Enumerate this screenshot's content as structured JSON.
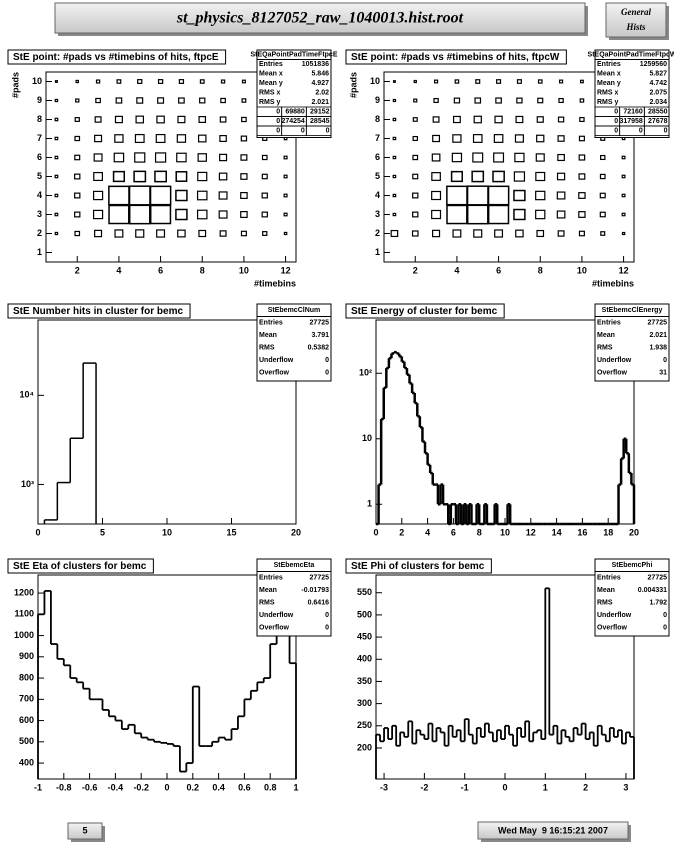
{
  "header": {
    "title": "st_physics_8127052_raw_1040013.hist.root",
    "button": [
      "General",
      "Hists"
    ]
  },
  "footer": {
    "page": "5",
    "date": "Wed May  9 16:15:21 2007"
  },
  "chart_data": [
    {
      "type": "box2d",
      "title": "StE point: #pads vs #timebins of hits, ftpcE",
      "xlabel": "#timebins",
      "ylabel": "#pads",
      "xlim": [
        0.5,
        12.5
      ],
      "ylim": [
        0.5,
        10.5
      ],
      "xticks": [
        2,
        4,
        6,
        8,
        10,
        12
      ],
      "yticks": [
        1,
        2,
        3,
        4,
        5,
        6,
        7,
        8,
        9,
        10
      ],
      "x": [
        1,
        2,
        3,
        4,
        5,
        6,
        7,
        8,
        9,
        10,
        11,
        12
      ],
      "y": [
        2,
        3,
        4,
        5,
        6,
        7,
        8,
        9,
        10
      ],
      "values": [
        [
          800,
          3000,
          7000,
          9000,
          9500,
          9000,
          8000,
          6500,
          5000,
          3500,
          2500,
          800
        ],
        [
          1000,
          4000,
          12000,
          58000,
          60000,
          58000,
          18000,
          13000,
          9000,
          6000,
          4000,
          1200
        ],
        [
          1000,
          4000,
          12000,
          60000,
          62000,
          60000,
          18000,
          13000,
          9000,
          6000,
          4000,
          1200
        ],
        [
          1000,
          4000,
          11000,
          17000,
          19000,
          19000,
          16000,
          12000,
          8000,
          5500,
          3500,
          1200
        ],
        [
          1000,
          3500,
          9000,
          13000,
          15000,
          15000,
          13000,
          10000,
          7000,
          5000,
          3000,
          1200
        ],
        [
          1000,
          3000,
          7000,
          10000,
          11000,
          11000,
          10000,
          8000,
          6000,
          4000,
          2500,
          1000
        ],
        [
          1000,
          2500,
          5000,
          7000,
          8000,
          8000,
          7000,
          6000,
          4500,
          3000,
          2000,
          1000
        ],
        [
          800,
          1500,
          3000,
          4500,
          5000,
          5000,
          4500,
          4000,
          3000,
          2000,
          1500,
          800
        ],
        [
          500,
          800,
          1500,
          2000,
          2500,
          2500,
          2500,
          2000,
          1500,
          1200,
          800,
          500
        ]
      ],
      "stats": {
        "name": "StEQaPointPadTimeFtpcE",
        "rows": [
          {
            "label": "Entries",
            "value": 1051836
          },
          {
            "label": "Mean x",
            "value": 5.846
          },
          {
            "label": "Mean y",
            "value": 4.927
          },
          {
            "label": "RMS x",
            "value": 2.02
          },
          {
            "label": "RMS y",
            "value": 2.021
          }
        ],
        "grid": [
          [
            0,
            69880,
            29152
          ],
          [
            0,
            274254,
            28545
          ],
          [
            0,
            0,
            0
          ]
        ]
      }
    },
    {
      "type": "box2d",
      "title": "StE point: #pads vs #timebins of hits, ftpcW",
      "xlabel": "#timebins",
      "ylabel": "#pads",
      "xlim": [
        0.5,
        12.5
      ],
      "ylim": [
        0.5,
        10.5
      ],
      "xticks": [
        2,
        4,
        6,
        8,
        10,
        12
      ],
      "yticks": [
        1,
        2,
        3,
        4,
        5,
        6,
        7,
        8,
        9,
        10
      ],
      "x": [
        1,
        2,
        3,
        4,
        5,
        6,
        7,
        8,
        9,
        10,
        11,
        12
      ],
      "y": [
        2,
        3,
        4,
        5,
        6,
        7,
        8,
        9,
        10
      ],
      "values": [
        [
          7000,
          5000,
          8000,
          10000,
          10500,
          10000,
          9000,
          7000,
          5500,
          4000,
          2500,
          800
        ],
        [
          1000,
          4500,
          13000,
          66000,
          68000,
          66000,
          20000,
          14000,
          9500,
          6500,
          4000,
          1200
        ],
        [
          1000,
          4500,
          13000,
          68000,
          70000,
          68000,
          20000,
          14000,
          9500,
          6500,
          4000,
          1200
        ],
        [
          1000,
          4000,
          12000,
          19000,
          21000,
          21000,
          17000,
          13000,
          8500,
          5500,
          3500,
          1200
        ],
        [
          1000,
          3500,
          9500,
          14000,
          16000,
          16000,
          14000,
          10500,
          7000,
          5000,
          3000,
          1200
        ],
        [
          1000,
          3000,
          7500,
          11000,
          12000,
          12000,
          10500,
          8500,
          6000,
          4000,
          2500,
          1000
        ],
        [
          1000,
          2500,
          5500,
          7500,
          8500,
          8500,
          7500,
          6000,
          4500,
          3000,
          2000,
          1000
        ],
        [
          800,
          1500,
          3000,
          4500,
          5000,
          5000,
          4500,
          4000,
          3000,
          2000,
          1500,
          800
        ],
        [
          500,
          800,
          1500,
          2000,
          2500,
          2500,
          2500,
          2000,
          1500,
          1200,
          800,
          500
        ]
      ],
      "stats": {
        "name": "StEQaPointPadTimeFtpcW",
        "rows": [
          {
            "label": "Entries",
            "value": 1259560
          },
          {
            "label": "Mean x",
            "value": 5.827
          },
          {
            "label": "Mean y",
            "value": 4.742
          },
          {
            "label": "RMS x",
            "value": 2.075
          },
          {
            "label": "RMS y",
            "value": 2.034
          }
        ],
        "grid": [
          [
            0,
            72160,
            28550
          ],
          [
            0,
            317958,
            27678
          ],
          [
            0,
            0,
            0
          ]
        ]
      }
    },
    {
      "type": "histogram",
      "title": "StE Number hits in cluster for bemc",
      "log_y": true,
      "xlim": [
        0,
        20
      ],
      "ylim": [
        360,
        70000
      ],
      "xticks": [
        0,
        5,
        10,
        15,
        20
      ],
      "yticks": [
        {
          "value": 1000,
          "label": "10³"
        },
        {
          "value": 10000,
          "label": "10⁴"
        }
      ],
      "bins": [
        0.5,
        1.5,
        2.5,
        3.5,
        4.5
      ],
      "values": [
        400,
        1050,
        3300,
        23000
      ],
      "line_width": 1.5,
      "stats": {
        "name": "StEbemcClNum",
        "rows": [
          {
            "label": "Entries",
            "value": 27725
          },
          {
            "label": "Mean",
            "value": 3.791
          },
          {
            "label": "RMS",
            "value": 0.5382
          },
          {
            "label": "Underflow",
            "value": 0
          },
          {
            "label": "Overflow",
            "value": 0
          }
        ]
      }
    },
    {
      "type": "histogram",
      "title": "StE Energy of cluster for bemc",
      "log_y": true,
      "xlim": [
        0,
        20
      ],
      "ylim": [
        0.5,
        650
      ],
      "xticks": [
        0,
        2,
        4,
        6,
        8,
        10,
        12,
        14,
        16,
        18,
        20
      ],
      "yticks": [
        1,
        10,
        {
          "value": 100,
          "label": "10²"
        }
      ],
      "bins": [
        0,
        0.2,
        0.4,
        0.6,
        0.8,
        1,
        1.2,
        1.4,
        1.6,
        1.8,
        2,
        2.2,
        2.4,
        2.6,
        2.8,
        3,
        3.2,
        3.4,
        3.6,
        3.8,
        4,
        4.2,
        4.4,
        4.6,
        4.8,
        5,
        5.2,
        5.4,
        5.6,
        5.8,
        6,
        6.2,
        6.4,
        6.6,
        6.8,
        7,
        7.2,
        7.4,
        7.6,
        7.8,
        8,
        8.2,
        8.4,
        8.6,
        8.8,
        9,
        9.2,
        9.4,
        9.6,
        9.8,
        10,
        10.2,
        10.4,
        10.6,
        10.8,
        11,
        11.2,
        11.4,
        11.6,
        11.8,
        12,
        12.2,
        12.4,
        12.6,
        12.8,
        13,
        13.2,
        13.4,
        13.6,
        13.8,
        14,
        14.2,
        14.4,
        14.6,
        14.8,
        15,
        15.2,
        15.4,
        15.6,
        15.8,
        16,
        16.2,
        16.4,
        16.6,
        16.8,
        17,
        17.2,
        17.4,
        17.6,
        17.8,
        18,
        18.2,
        18.4,
        18.6,
        18.8,
        19,
        19.2,
        19.4,
        19.6,
        19.8,
        20
      ],
      "values": [
        0,
        2,
        20,
        60,
        120,
        170,
        200,
        210,
        200,
        180,
        150,
        120,
        95,
        70,
        50,
        35,
        22,
        15,
        9,
        6,
        4,
        3,
        2,
        2,
        1,
        2,
        1,
        1,
        0,
        1,
        1,
        0,
        1,
        0,
        1,
        0,
        1,
        0,
        0,
        1,
        0,
        0,
        1,
        0,
        0,
        0,
        1,
        0,
        0,
        0,
        0,
        1,
        0,
        0,
        0,
        0,
        0,
        0,
        0,
        0,
        0,
        0,
        0,
        0,
        0,
        0,
        0,
        0,
        0,
        0,
        0,
        0,
        0,
        0,
        0,
        0,
        0,
        0,
        0,
        0,
        0,
        0,
        0,
        0,
        0,
        0,
        0,
        0,
        0,
        0,
        0,
        0,
        0,
        0,
        2,
        5,
        10,
        6,
        3,
        2
      ],
      "line_width": 2.5,
      "stats": {
        "name": "StEbemcClEnergy",
        "rows": [
          {
            "label": "Entries",
            "value": 27725
          },
          {
            "label": "Mean",
            "value": 2.021
          },
          {
            "label": "RMS",
            "value": 1.938
          },
          {
            "label": "Underflow",
            "value": 0
          },
          {
            "label": "Overflow",
            "value": 31
          }
        ]
      }
    },
    {
      "type": "histogram",
      "title": "StE Eta of clusters for bemc",
      "log_y": false,
      "xlim": [
        -1,
        1
      ],
      "ylim": [
        325,
        1285
      ],
      "xticks": [
        -1,
        -0.8,
        -0.6,
        -0.4,
        -0.2,
        0,
        0.2,
        0.4,
        0.6,
        0.8,
        1
      ],
      "yticks": [
        400,
        500,
        600,
        700,
        800,
        900,
        1000,
        1100,
        1200
      ],
      "bins": [
        -1,
        -0.95,
        -0.9,
        -0.85,
        -0.8,
        -0.75,
        -0.7,
        -0.65,
        -0.6,
        -0.55,
        -0.5,
        -0.45,
        -0.4,
        -0.35,
        -0.3,
        -0.25,
        -0.2,
        -0.15,
        -0.1,
        -0.05,
        0,
        0.05,
        0.1,
        0.15,
        0.2,
        0.25,
        0.3,
        0.35,
        0.4,
        0.45,
        0.5,
        0.55,
        0.6,
        0.65,
        0.7,
        0.75,
        0.8,
        0.85,
        0.9,
        0.95,
        1
      ],
      "values": [
        1100,
        1210,
        960,
        890,
        860,
        800,
        780,
        750,
        700,
        700,
        650,
        620,
        600,
        560,
        580,
        540,
        520,
        510,
        500,
        495,
        490,
        480,
        360,
        400,
        760,
        480,
        480,
        500,
        520,
        510,
        560,
        620,
        700,
        740,
        780,
        800,
        960,
        1000,
        1100,
        870
      ],
      "line_width": 1.8,
      "stats": {
        "name": "StEbemcEta",
        "rows": [
          {
            "label": "Entries",
            "value": 27725
          },
          {
            "label": "Mean",
            "value": -0.01793
          },
          {
            "label": "RMS",
            "value": 0.6416
          },
          {
            "label": "Underflow",
            "value": 0
          },
          {
            "label": "Overflow",
            "value": 0
          }
        ]
      }
    },
    {
      "type": "histogram",
      "title": "StE Phi of clusters for bemc",
      "log_y": false,
      "xlim": [
        -3.2,
        3.2
      ],
      "ylim": [
        130,
        590
      ],
      "xticks": [
        -3,
        -2,
        -1,
        0,
        1,
        2,
        3
      ],
      "yticks": [
        200,
        250,
        300,
        350,
        400,
        450,
        500,
        550
      ],
      "bins": [
        -3.2,
        -3.1,
        -3,
        -2.9,
        -2.8,
        -2.7,
        -2.6,
        -2.5,
        -2.4,
        -2.3,
        -2.2,
        -2.1,
        -2,
        -1.9,
        -1.8,
        -1.7,
        -1.6,
        -1.5,
        -1.4,
        -1.3,
        -1.2,
        -1.1,
        -1,
        -0.9,
        -0.8,
        -0.7,
        -0.6,
        -0.5,
        -0.4,
        -0.3,
        -0.2,
        -0.1,
        0,
        0.1,
        0.2,
        0.3,
        0.4,
        0.5,
        0.6,
        0.7,
        0.8,
        0.9,
        1,
        1.1,
        1.2,
        1.3,
        1.4,
        1.5,
        1.6,
        1.7,
        1.8,
        1.9,
        2,
        2.1,
        2.2,
        2.3,
        2.4,
        2.5,
        2.6,
        2.7,
        2.8,
        2.9,
        3,
        3.1,
        3.2
      ],
      "values": [
        230,
        215,
        245,
        220,
        250,
        205,
        235,
        225,
        260,
        210,
        240,
        230,
        220,
        255,
        215,
        245,
        235,
        205,
        250,
        225,
        240,
        215,
        265,
        230,
        210,
        245,
        225,
        255,
        235,
        215,
        240,
        220,
        250,
        230,
        205,
        245,
        225,
        260,
        215,
        235,
        240,
        220,
        560,
        230,
        250,
        210,
        240,
        225,
        215,
        245,
        230,
        255,
        220,
        235,
        205,
        250,
        230,
        215,
        245,
        225,
        240,
        210,
        235,
        225
      ],
      "line_width": 1.8,
      "stats": {
        "name": "StEbemcPhi",
        "rows": [
          {
            "label": "Entries",
            "value": 27725
          },
          {
            "label": "Mean",
            "value": 0.004331
          },
          {
            "label": "RMS",
            "value": 1.792
          },
          {
            "label": "Underflow",
            "value": 0
          },
          {
            "label": "Overflow",
            "value": 0
          }
        ]
      }
    }
  ]
}
